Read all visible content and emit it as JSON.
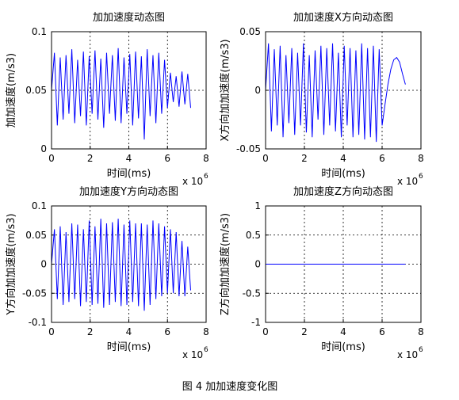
{
  "chart_data": [
    {
      "type": "line",
      "title": "加加速度动态图",
      "x_label": "时间(ms)",
      "y_label": "加加速度(m/s3)",
      "x_scale_label": "x 10",
      "x_scale_exponent": 6,
      "color": "#0000ff",
      "grid": true,
      "xlim": [
        0,
        8
      ],
      "xticks": [
        0,
        2,
        4,
        6,
        8
      ],
      "ylim": [
        0,
        0.1
      ],
      "yticks": [
        0,
        0.05,
        0.1
      ],
      "x": [
        0,
        0.15,
        0.3,
        0.45,
        0.6,
        0.75,
        0.9,
        1.05,
        1.2,
        1.35,
        1.5,
        1.65,
        1.8,
        1.95,
        2.1,
        2.25,
        2.4,
        2.55,
        2.7,
        2.85,
        3,
        3.15,
        3.3,
        3.45,
        3.6,
        3.75,
        3.9,
        4.05,
        4.2,
        4.35,
        4.5,
        4.65,
        4.8,
        4.95,
        5.1,
        5.25,
        5.4,
        5.55,
        5.7,
        5.85,
        6,
        6.15,
        6.3,
        6.45,
        6.6,
        6.75,
        6.9,
        7.05,
        7.2
      ],
      "values": [
        0.05,
        0.082,
        0.02,
        0.078,
        0.025,
        0.08,
        0.03,
        0.085,
        0.022,
        0.076,
        0.028,
        0.083,
        0.02,
        0.079,
        0.03,
        0.084,
        0.025,
        0.077,
        0.018,
        0.082,
        0.03,
        0.08,
        0.024,
        0.086,
        0.022,
        0.078,
        0.03,
        0.081,
        0.02,
        0.083,
        0.026,
        0.079,
        0.008,
        0.085,
        0.028,
        0.08,
        0.022,
        0.082,
        0.03,
        0.076,
        0.035,
        0.065,
        0.04,
        0.062,
        0.036,
        0.066,
        0.038,
        0.064,
        0.035
      ]
    },
    {
      "type": "line",
      "title": "加加速度X方向动态图",
      "x_label": "时间(ms)",
      "y_label": "X方向加加速度(m/s3)",
      "x_scale_label": "x 10",
      "x_scale_exponent": 6,
      "color": "#0000ff",
      "grid": true,
      "xlim": [
        0,
        8
      ],
      "xticks": [
        0,
        2,
        4,
        6,
        8
      ],
      "ylim": [
        -0.05,
        0.05
      ],
      "yticks": [
        -0.05,
        0,
        0.05
      ],
      "x": [
        0,
        0.15,
        0.3,
        0.45,
        0.6,
        0.75,
        0.9,
        1.05,
        1.2,
        1.35,
        1.5,
        1.65,
        1.8,
        1.95,
        2.1,
        2.25,
        2.4,
        2.55,
        2.7,
        2.85,
        3,
        3.15,
        3.3,
        3.45,
        3.6,
        3.75,
        3.9,
        4.05,
        4.2,
        4.35,
        4.5,
        4.65,
        4.8,
        4.95,
        5.1,
        5.25,
        5.4,
        5.55,
        5.7,
        5.85,
        6,
        6.15,
        6.3,
        6.45,
        6.6,
        6.75,
        6.9,
        7.05,
        7.2
      ],
      "values": [
        0,
        0.04,
        -0.035,
        0.035,
        -0.03,
        0.038,
        -0.04,
        0.03,
        -0.028,
        0.036,
        -0.038,
        0.032,
        -0.03,
        0.04,
        -0.036,
        0.03,
        -0.04,
        0.034,
        -0.025,
        0.038,
        -0.038,
        0.036,
        -0.03,
        0.04,
        -0.035,
        0.032,
        -0.04,
        0.038,
        -0.03,
        0.036,
        -0.04,
        0.034,
        -0.038,
        0.04,
        -0.042,
        0.036,
        -0.04,
        0.038,
        -0.044,
        0.035,
        -0.03,
        -0.012,
        0.005,
        0.018,
        0.026,
        0.028,
        0.024,
        0.014,
        0.005
      ]
    },
    {
      "type": "line",
      "title": "加加速度Y方向动态图",
      "x_label": "时间(ms)",
      "y_label": "Y方向加加速度(m/s3)",
      "x_scale_label": "x 10",
      "x_scale_exponent": 6,
      "color": "#0000ff",
      "grid": true,
      "xlim": [
        0,
        8
      ],
      "xticks": [
        0,
        2,
        4,
        6,
        8
      ],
      "ylim": [
        -0.1,
        0.1
      ],
      "yticks": [
        -0.1,
        -0.05,
        0,
        0.05,
        0.1
      ],
      "x": [
        0,
        0.15,
        0.3,
        0.45,
        0.6,
        0.75,
        0.9,
        1.05,
        1.2,
        1.35,
        1.5,
        1.65,
        1.8,
        1.95,
        2.1,
        2.25,
        2.4,
        2.55,
        2.7,
        2.85,
        3,
        3.15,
        3.3,
        3.45,
        3.6,
        3.75,
        3.9,
        4.05,
        4.2,
        4.35,
        4.5,
        4.65,
        4.8,
        4.95,
        5.1,
        5.25,
        5.4,
        5.55,
        5.7,
        5.85,
        6,
        6.15,
        6.3,
        6.45,
        6.6,
        6.75,
        6.9,
        7.05,
        7.2
      ],
      "values": [
        0,
        0.06,
        -0.06,
        0.065,
        -0.07,
        0.055,
        -0.065,
        0.07,
        -0.06,
        0.068,
        -0.072,
        0.06,
        -0.065,
        0.075,
        -0.07,
        0.065,
        -0.068,
        0.078,
        -0.075,
        0.07,
        -0.07,
        0.072,
        -0.065,
        0.078,
        -0.072,
        0.068,
        -0.07,
        0.075,
        -0.065,
        0.07,
        -0.072,
        0.07,
        -0.08,
        0.068,
        -0.07,
        0.075,
        -0.06,
        0.07,
        -0.055,
        0.065,
        -0.05,
        0.06,
        -0.05,
        0.055,
        -0.055,
        0.04,
        -0.055,
        0.03,
        -0.045
      ]
    },
    {
      "type": "line",
      "title": "加加速度Z方向动态图",
      "x_label": "时间(ms)",
      "y_label": "Z方向加加速度(m/s3)",
      "x_scale_label": "x 10",
      "x_scale_exponent": 6,
      "color": "#0000ff",
      "grid": true,
      "xlim": [
        0,
        8
      ],
      "xticks": [
        0,
        2,
        4,
        6,
        8
      ],
      "ylim": [
        -1,
        1
      ],
      "yticks": [
        -1,
        -0.5,
        0,
        0.5,
        1
      ],
      "x": [
        0,
        7.2
      ],
      "values": [
        0,
        0
      ]
    }
  ],
  "caption": "图 4  加加速度变化图"
}
